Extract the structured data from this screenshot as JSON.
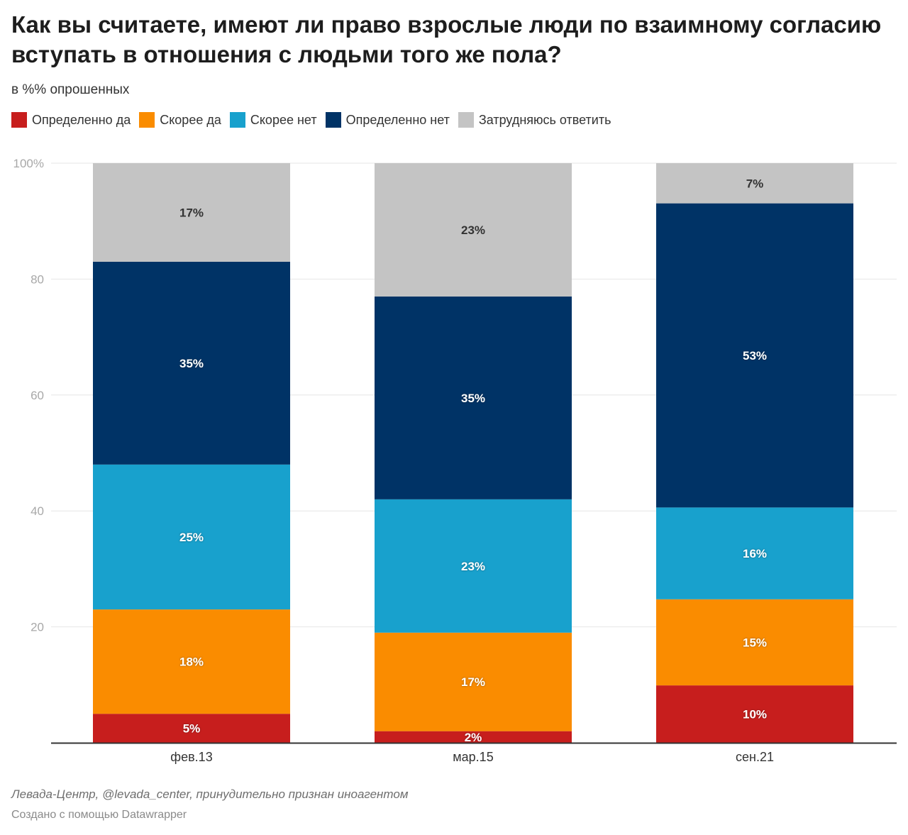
{
  "header": {
    "title": "Как вы считаете, имеют ли право взрослые люди по взаимному согласию вступать в отношения с людьми того же пола?",
    "subtitle": "в %% опрошенных"
  },
  "footer": {
    "source": "Левада-Центр, @levada_center, принудительно признан иноагентом",
    "credit": "Создано с помощью Datawrapper"
  },
  "chart_data": {
    "type": "bar",
    "stacked": true,
    "title": "Как вы считаете, имеют ли право взрослые люди по взаимному согласию вступать в отношения с людьми того же пола?",
    "subtitle": "в %% опрошенных",
    "xlabel": "",
    "ylabel": "",
    "categories": [
      "фев.13",
      "мар.15",
      "сен.21"
    ],
    "ylim": [
      0,
      100
    ],
    "yticks": [
      {
        "value": 0,
        "label": ""
      },
      {
        "value": 20,
        "label": "20"
      },
      {
        "value": 40,
        "label": "40"
      },
      {
        "value": 60,
        "label": "60"
      },
      {
        "value": 80,
        "label": "80"
      },
      {
        "value": 100,
        "label": "100%"
      }
    ],
    "grid": true,
    "legend_position": "top-left",
    "series": [
      {
        "name": "Определенно да",
        "color": "#c71e1d",
        "label_color": "#ffffff",
        "values": [
          5,
          2,
          10
        ],
        "labels": [
          "5%",
          "2%",
          "10%"
        ]
      },
      {
        "name": "Скорее да",
        "color": "#fa8c00",
        "label_color": "#ffffff",
        "values": [
          18,
          17,
          15
        ],
        "labels": [
          "18%",
          "17%",
          "15%"
        ]
      },
      {
        "name": "Скорее нет",
        "color": "#18a1cd",
        "label_color": "#ffffff",
        "values": [
          25,
          23,
          16
        ],
        "labels": [
          "25%",
          "23%",
          "16%"
        ]
      },
      {
        "name": "Определенно нет",
        "color": "#003366",
        "label_color": "#ffffff",
        "values": [
          35,
          35,
          53
        ],
        "labels": [
          "35%",
          "35%",
          "53%"
        ]
      },
      {
        "name": "Затрудняюсь ответить",
        "color": "#c4c4c4",
        "label_color": "#333333",
        "values": [
          17,
          23,
          7
        ],
        "labels": [
          "17%",
          "23%",
          "7%"
        ]
      }
    ]
  }
}
